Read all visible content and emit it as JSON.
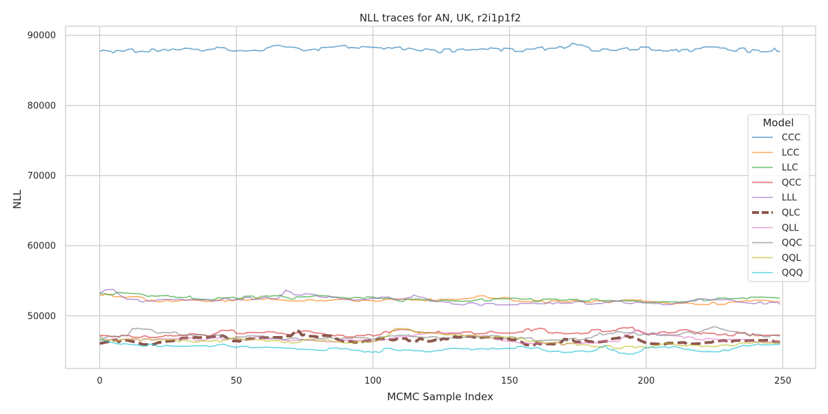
{
  "chart_data": {
    "type": "line",
    "title": "NLL traces for AN, UK, r2i1p1f2",
    "xlabel": "MCMC Sample Index",
    "ylabel": "NLL",
    "xlim": [
      -12.5,
      262
    ],
    "ylim": [
      42500,
      91300
    ],
    "xticks": [
      0,
      50,
      100,
      150,
      200,
      250
    ],
    "yticks": [
      50000,
      60000,
      70000,
      80000,
      90000
    ],
    "grid": true,
    "legend": {
      "title": "Model",
      "placement": "right"
    },
    "num_samples": 250,
    "series": [
      {
        "name": "CCC",
        "color": "#1f77b4",
        "dashed": false,
        "base": 88000,
        "amp": 280,
        "knots": [
          [
            0,
            87800
          ],
          [
            10,
            87700
          ],
          [
            15,
            87950
          ],
          [
            20,
            87750
          ],
          [
            30,
            88150
          ],
          [
            40,
            88000
          ],
          [
            45,
            88200
          ],
          [
            50,
            87850
          ],
          [
            60,
            88100
          ],
          [
            65,
            88450
          ],
          [
            70,
            88400
          ],
          [
            75,
            87900
          ],
          [
            85,
            88150
          ],
          [
            90,
            88400
          ],
          [
            100,
            88050
          ],
          [
            110,
            88300
          ],
          [
            115,
            87800
          ],
          [
            125,
            87750
          ],
          [
            135,
            88100
          ],
          [
            140,
            88300
          ],
          [
            150,
            87900
          ],
          [
            160,
            87950
          ],
          [
            165,
            88250
          ],
          [
            170,
            88300
          ],
          [
            173,
            88800
          ],
          [
            180,
            87900
          ],
          [
            190,
            87750
          ],
          [
            195,
            88150
          ],
          [
            200,
            88100
          ],
          [
            210,
            87800
          ],
          [
            220,
            88100
          ],
          [
            230,
            88050
          ],
          [
            240,
            87800
          ],
          [
            249,
            88000
          ]
        ]
      },
      {
        "name": "LCC",
        "color": "#ff7f0e",
        "dashed": false,
        "base": 52300,
        "amp": 180,
        "knots": [
          [
            0,
            53000
          ],
          [
            15,
            52600
          ],
          [
            20,
            52000
          ],
          [
            30,
            52200
          ],
          [
            40,
            52100
          ],
          [
            50,
            52200
          ],
          [
            60,
            52400
          ],
          [
            70,
            52300
          ],
          [
            80,
            52200
          ],
          [
            90,
            52300
          ],
          [
            100,
            52100
          ],
          [
            110,
            52400
          ],
          [
            120,
            52300
          ],
          [
            130,
            52300
          ],
          [
            140,
            52700
          ],
          [
            150,
            52400
          ],
          [
            160,
            52000
          ],
          [
            170,
            52000
          ],
          [
            180,
            52000
          ],
          [
            190,
            52100
          ],
          [
            200,
            52200
          ],
          [
            210,
            51800
          ],
          [
            220,
            51700
          ],
          [
            230,
            51800
          ],
          [
            240,
            52100
          ],
          [
            249,
            51900
          ]
        ]
      },
      {
        "name": "LLC",
        "color": "#2ca02c",
        "dashed": false,
        "base": 52600,
        "amp": 180,
        "knots": [
          [
            0,
            53200
          ],
          [
            15,
            53100
          ],
          [
            20,
            52700
          ],
          [
            30,
            52800
          ],
          [
            40,
            52400
          ],
          [
            50,
            52600
          ],
          [
            60,
            52700
          ],
          [
            65,
            53000
          ],
          [
            70,
            52500
          ],
          [
            80,
            52800
          ],
          [
            90,
            52500
          ],
          [
            100,
            52600
          ],
          [
            110,
            52200
          ],
          [
            120,
            52300
          ],
          [
            130,
            52100
          ],
          [
            140,
            52300
          ],
          [
            150,
            52400
          ],
          [
            160,
            52200
          ],
          [
            170,
            52300
          ],
          [
            180,
            52200
          ],
          [
            190,
            52300
          ],
          [
            200,
            52000
          ],
          [
            210,
            51900
          ],
          [
            220,
            52300
          ],
          [
            230,
            52500
          ],
          [
            240,
            52600
          ],
          [
            249,
            52400
          ]
        ]
      },
      {
        "name": "QCC",
        "color": "#d62728",
        "dashed": false,
        "base": 47500,
        "amp": 220,
        "knots": [
          [
            0,
            47200
          ],
          [
            20,
            47000
          ],
          [
            30,
            47400
          ],
          [
            40,
            47300
          ],
          [
            45,
            47900
          ],
          [
            50,
            47700
          ],
          [
            60,
            47600
          ],
          [
            70,
            47400
          ],
          [
            75,
            47900
          ],
          [
            80,
            47500
          ],
          [
            90,
            47200
          ],
          [
            100,
            47200
          ],
          [
            110,
            48000
          ],
          [
            120,
            47700
          ],
          [
            130,
            47500
          ],
          [
            140,
            47600
          ],
          [
            150,
            47700
          ],
          [
            160,
            48100
          ],
          [
            170,
            47400
          ],
          [
            180,
            47800
          ],
          [
            190,
            48000
          ],
          [
            195,
            48300
          ],
          [
            200,
            47500
          ],
          [
            210,
            47800
          ],
          [
            215,
            48100
          ],
          [
            220,
            47500
          ],
          [
            230,
            47400
          ],
          [
            240,
            47300
          ],
          [
            249,
            47200
          ]
        ]
      },
      {
        "name": "LLL",
        "color": "#9467bd",
        "dashed": false,
        "base": 52300,
        "amp": 200,
        "knots": [
          [
            0,
            53200
          ],
          [
            2,
            53700
          ],
          [
            5,
            53800
          ],
          [
            8,
            52800
          ],
          [
            10,
            52300
          ],
          [
            20,
            52100
          ],
          [
            30,
            52300
          ],
          [
            40,
            52300
          ],
          [
            50,
            52400
          ],
          [
            60,
            52600
          ],
          [
            65,
            52500
          ],
          [
            68,
            53500
          ],
          [
            70,
            53200
          ],
          [
            80,
            52900
          ],
          [
            90,
            52300
          ],
          [
            100,
            52500
          ],
          [
            110,
            52500
          ],
          [
            115,
            52900
          ],
          [
            120,
            52200
          ],
          [
            130,
            51800
          ],
          [
            140,
            51600
          ],
          [
            150,
            51700
          ],
          [
            160,
            51800
          ],
          [
            170,
            51900
          ],
          [
            180,
            51800
          ],
          [
            190,
            52000
          ],
          [
            200,
            51700
          ],
          [
            210,
            51800
          ],
          [
            220,
            52300
          ],
          [
            230,
            52200
          ],
          [
            240,
            51800
          ],
          [
            249,
            51800
          ]
        ]
      },
      {
        "name": "QLC",
        "color": "#8c564b",
        "dashed": true,
        "base": 46700,
        "amp": 180,
        "knots": [
          [
            0,
            46000
          ],
          [
            5,
            46400
          ],
          [
            10,
            46400
          ],
          [
            15,
            46000
          ],
          [
            20,
            46000
          ],
          [
            25,
            46500
          ],
          [
            30,
            46800
          ],
          [
            40,
            46900
          ],
          [
            45,
            47200
          ],
          [
            50,
            46400
          ],
          [
            60,
            47000
          ],
          [
            70,
            47000
          ],
          [
            72,
            47800
          ],
          [
            75,
            47200
          ],
          [
            85,
            47000
          ],
          [
            90,
            46300
          ],
          [
            100,
            46500
          ],
          [
            110,
            46700
          ],
          [
            120,
            46500
          ],
          [
            125,
            46500
          ],
          [
            130,
            47100
          ],
          [
            140,
            47000
          ],
          [
            150,
            46800
          ],
          [
            155,
            46000
          ],
          [
            165,
            46000
          ],
          [
            170,
            46500
          ],
          [
            180,
            46300
          ],
          [
            190,
            46800
          ],
          [
            195,
            47100
          ],
          [
            202,
            46000
          ],
          [
            210,
            46000
          ],
          [
            220,
            46200
          ],
          [
            230,
            46400
          ],
          [
            240,
            46600
          ],
          [
            249,
            46400
          ]
        ]
      },
      {
        "name": "QLL",
        "color": "#e377c2",
        "dashed": false,
        "base": 46600,
        "amp": 200,
        "knots": [
          [
            0,
            46500
          ],
          [
            20,
            46600
          ],
          [
            40,
            46700
          ],
          [
            60,
            46800
          ],
          [
            80,
            46400
          ],
          [
            100,
            46500
          ],
          [
            110,
            47000
          ],
          [
            120,
            47500
          ],
          [
            130,
            47400
          ],
          [
            140,
            47000
          ],
          [
            150,
            46500
          ],
          [
            160,
            46000
          ],
          [
            170,
            46000
          ],
          [
            180,
            46200
          ],
          [
            190,
            46400
          ],
          [
            195,
            47500
          ],
          [
            197,
            47900
          ],
          [
            200,
            47600
          ],
          [
            210,
            47000
          ],
          [
            220,
            46700
          ],
          [
            230,
            46500
          ],
          [
            240,
            46400
          ],
          [
            249,
            46500
          ]
        ]
      },
      {
        "name": "QQC",
        "color": "#7f7f7f",
        "dashed": false,
        "base": 47200,
        "amp": 220,
        "knots": [
          [
            0,
            47000
          ],
          [
            10,
            47000
          ],
          [
            12,
            48300
          ],
          [
            15,
            48000
          ],
          [
            20,
            47800
          ],
          [
            30,
            47500
          ],
          [
            40,
            47200
          ],
          [
            50,
            46900
          ],
          [
            60,
            47000
          ],
          [
            70,
            46600
          ],
          [
            80,
            46800
          ],
          [
            90,
            46800
          ],
          [
            100,
            46700
          ],
          [
            110,
            47300
          ],
          [
            120,
            47000
          ],
          [
            130,
            46900
          ],
          [
            140,
            47000
          ],
          [
            150,
            46900
          ],
          [
            160,
            46600
          ],
          [
            170,
            46500
          ],
          [
            180,
            46700
          ],
          [
            183,
            47500
          ],
          [
            190,
            47600
          ],
          [
            200,
            47400
          ],
          [
            210,
            47300
          ],
          [
            220,
            47700
          ],
          [
            225,
            48300
          ],
          [
            230,
            47900
          ],
          [
            240,
            47300
          ],
          [
            249,
            47000
          ]
        ]
      },
      {
        "name": "QQL",
        "color": "#bcbd22",
        "dashed": false,
        "base": 46300,
        "amp": 180,
        "knots": [
          [
            0,
            46600
          ],
          [
            20,
            46500
          ],
          [
            30,
            46400
          ],
          [
            40,
            46200
          ],
          [
            50,
            46800
          ],
          [
            60,
            46500
          ],
          [
            70,
            46300
          ],
          [
            80,
            46600
          ],
          [
            90,
            46200
          ],
          [
            100,
            46400
          ],
          [
            105,
            47000
          ],
          [
            108,
            48200
          ],
          [
            113,
            48200
          ],
          [
            118,
            47500
          ],
          [
            130,
            47300
          ],
          [
            140,
            47000
          ],
          [
            150,
            46800
          ],
          [
            160,
            46400
          ],
          [
            170,
            46000
          ],
          [
            180,
            45700
          ],
          [
            190,
            45500
          ],
          [
            200,
            45600
          ],
          [
            210,
            46000
          ],
          [
            220,
            45700
          ],
          [
            230,
            45800
          ],
          [
            240,
            46100
          ],
          [
            249,
            46100
          ]
        ]
      },
      {
        "name": "QQQ",
        "color": "#17becf",
        "dashed": false,
        "base": 45700,
        "amp": 180,
        "knots": [
          [
            0,
            46400
          ],
          [
            10,
            46000
          ],
          [
            20,
            45800
          ],
          [
            30,
            45700
          ],
          [
            40,
            45600
          ],
          [
            45,
            45900
          ],
          [
            50,
            45500
          ],
          [
            60,
            45600
          ],
          [
            70,
            45300
          ],
          [
            80,
            45200
          ],
          [
            90,
            45400
          ],
          [
            100,
            44700
          ],
          [
            105,
            45300
          ],
          [
            110,
            45000
          ],
          [
            120,
            45000
          ],
          [
            130,
            45200
          ],
          [
            140,
            45300
          ],
          [
            150,
            45500
          ],
          [
            160,
            45400
          ],
          [
            165,
            44800
          ],
          [
            170,
            44900
          ],
          [
            180,
            45000
          ],
          [
            185,
            45600
          ],
          [
            190,
            44800
          ],
          [
            195,
            44700
          ],
          [
            200,
            45300
          ],
          [
            210,
            45600
          ],
          [
            220,
            44900
          ],
          [
            230,
            45000
          ],
          [
            235,
            45800
          ],
          [
            240,
            46000
          ],
          [
            249,
            46000
          ]
        ]
      }
    ]
  }
}
